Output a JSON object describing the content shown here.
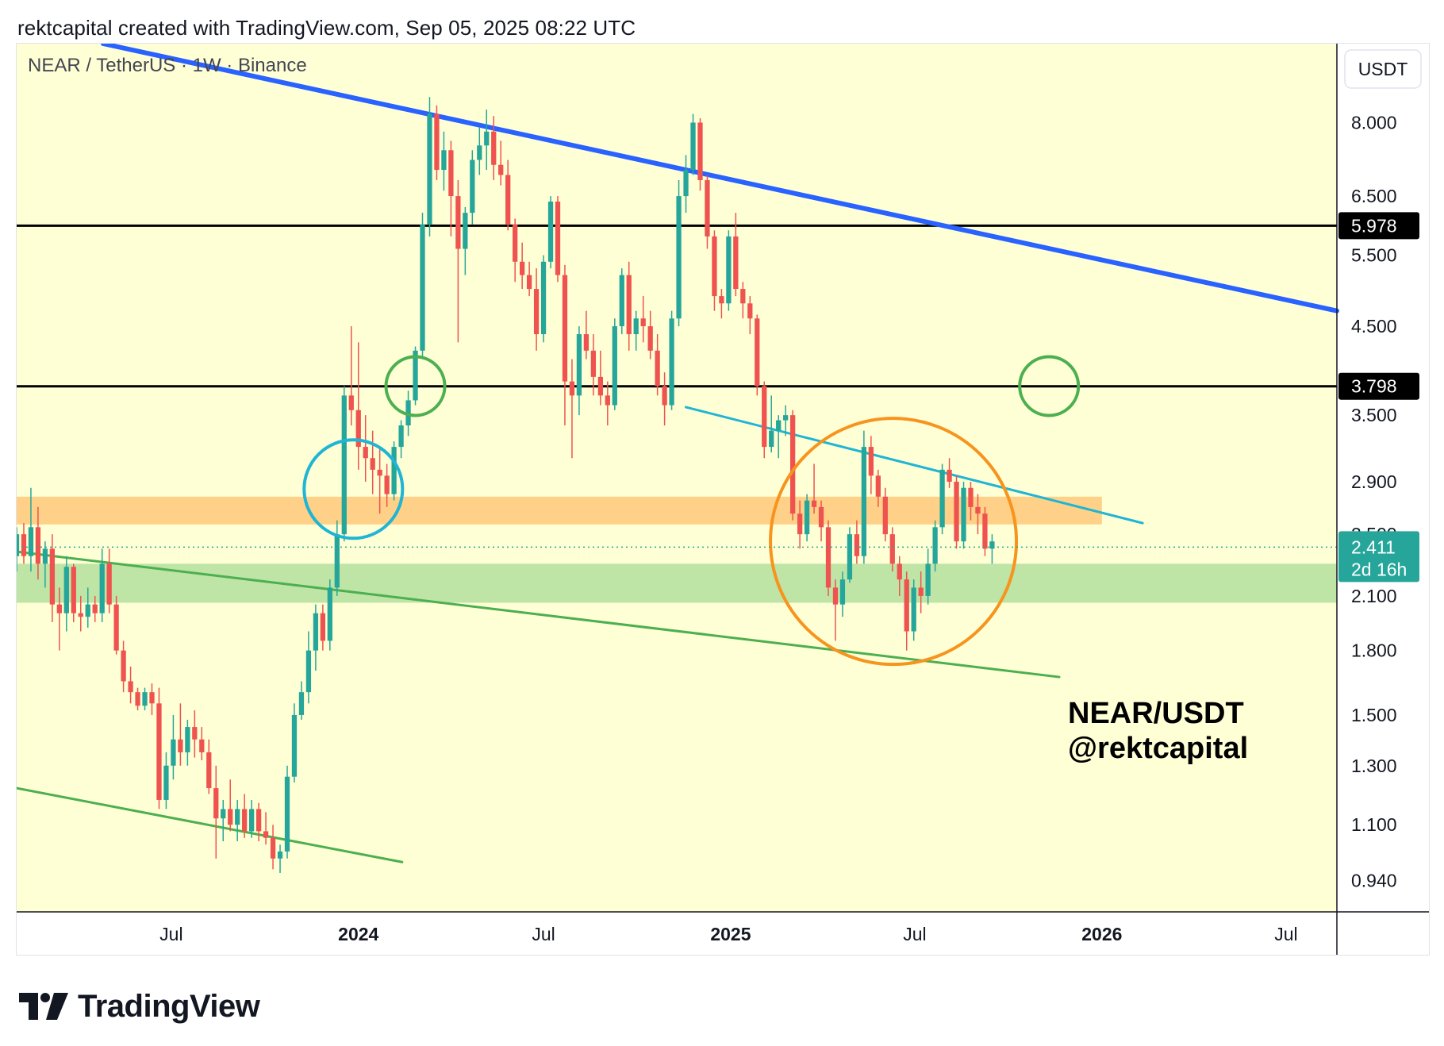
{
  "header": {
    "text": "rektcapital created with TradingView.com, Sep 05, 2025 08:22 UTC"
  },
  "footer": {
    "brand": "TradingView",
    "logo_icon": "tradingview-logo-icon"
  },
  "colors": {
    "chart_bg": "#ffffd6",
    "up": "#26a69a",
    "down": "#ef5350",
    "blue_trend": "#2962ff",
    "cyan_trend": "#1fb5d4",
    "green_trend": "#4caf50",
    "orange_zone": "#ffcc80",
    "green_zone": "#b7e1a1",
    "orange_circle": "#f7941d",
    "green_circle": "#4caf50",
    "cyan_circle": "#1fb5d4",
    "level_line": "#000000",
    "price_tag": "#26a69a"
  },
  "chart_data": {
    "type": "candlestick",
    "symbol_label": "NEAR / TetherUS · 1W · Binance",
    "currency_button": "USDT",
    "watermark_lines": [
      "NEAR/USDT",
      "@rektcapital"
    ],
    "y_scale": "log",
    "y_range": [
      0.86,
      10.0
    ],
    "x_range": [
      "2023-01-30",
      "2026-08-20"
    ],
    "y_ticks": [
      "8.000",
      "6.500",
      "5.500",
      "4.500",
      "3.500",
      "2.900",
      "2.500",
      "2.100",
      "1.800",
      "1.500",
      "1.300",
      "1.100",
      "0.940"
    ],
    "x_ticks": [
      {
        "label": "Jul",
        "date": "2023-07-01",
        "bold": false
      },
      {
        "label": "2024",
        "date": "2024-01-01",
        "bold": true
      },
      {
        "label": "Jul",
        "date": "2024-07-01",
        "bold": false
      },
      {
        "label": "2025",
        "date": "2025-01-01",
        "bold": true
      },
      {
        "label": "Jul",
        "date": "2025-07-01",
        "bold": false
      },
      {
        "label": "2026",
        "date": "2026-01-01",
        "bold": true
      },
      {
        "label": "Jul",
        "date": "2026-07-01",
        "bold": false
      }
    ],
    "current_price": {
      "value": "2.411",
      "countdown": "2d 16h",
      "price": 2.411
    },
    "horizontal_levels": [
      {
        "label": "5.978",
        "price": 5.978
      },
      {
        "label": "3.798",
        "price": 3.798
      }
    ],
    "zones": [
      {
        "name": "orange-zone",
        "from_date": "2023-01-30",
        "to_date": "2026-01-01",
        "low": 2.57,
        "high": 2.78
      },
      {
        "name": "green-zone",
        "from_date": "2023-01-30",
        "to_date": "2026-08-20",
        "low": 2.06,
        "high": 2.3
      }
    ],
    "trendlines": [
      {
        "name": "blue-descending-resistance",
        "from": [
          "2023-04-25",
          10.0
        ],
        "to": [
          "2026-08-20",
          4.7
        ]
      },
      {
        "name": "cyan-descending-trendline",
        "from": [
          "2024-11-18",
          3.58
        ],
        "to": [
          "2026-02-10",
          2.58
        ]
      },
      {
        "name": "green-upper-channel",
        "from": [
          "2023-01-30",
          2.38
        ],
        "to": [
          "2025-11-20",
          1.67
        ]
      },
      {
        "name": "green-lower-channel",
        "from": [
          "2023-01-30",
          1.22
        ],
        "to": [
          "2024-02-13",
          0.99
        ]
      }
    ],
    "circles": [
      {
        "name": "cyan-circle",
        "date": "2023-12-27",
        "price": 2.84
      },
      {
        "name": "green-circle-left",
        "date": "2024-02-26",
        "price": 3.8
      },
      {
        "name": "green-circle-right",
        "date": "2025-11-10",
        "price": 3.8
      },
      {
        "name": "orange-circle",
        "date": "2025-06-10",
        "price": 2.45
      }
    ],
    "candles_start": "2023-01-30",
    "candles_interval_days": 7,
    "candles": [
      [
        2.35,
        2.55,
        2.25,
        2.5
      ],
      [
        2.5,
        2.58,
        2.3,
        2.35
      ],
      [
        2.35,
        2.85,
        2.25,
        2.55
      ],
      [
        2.55,
        2.7,
        2.2,
        2.3
      ],
      [
        2.3,
        2.45,
        2.15,
        2.4
      ],
      [
        2.4,
        2.5,
        1.95,
        2.05
      ],
      [
        2.05,
        2.15,
        1.8,
        2.0
      ],
      [
        2.0,
        2.35,
        1.9,
        2.28
      ],
      [
        2.28,
        2.3,
        1.95,
        2.0
      ],
      [
        2.0,
        2.1,
        1.9,
        1.98
      ],
      [
        1.98,
        2.15,
        1.92,
        2.05
      ],
      [
        2.05,
        2.1,
        1.95,
        2.0
      ],
      [
        2.0,
        2.4,
        1.95,
        2.3
      ],
      [
        2.3,
        2.4,
        2.0,
        2.05
      ],
      [
        2.05,
        2.1,
        1.78,
        1.8
      ],
      [
        1.8,
        1.85,
        1.6,
        1.65
      ],
      [
        1.65,
        1.72,
        1.55,
        1.6
      ],
      [
        1.6,
        1.62,
        1.52,
        1.54
      ],
      [
        1.54,
        1.62,
        1.52,
        1.6
      ],
      [
        1.6,
        1.64,
        1.5,
        1.55
      ],
      [
        1.55,
        1.62,
        1.15,
        1.18
      ],
      [
        1.18,
        1.35,
        1.15,
        1.3
      ],
      [
        1.3,
        1.5,
        1.25,
        1.4
      ],
      [
        1.4,
        1.55,
        1.3,
        1.35
      ],
      [
        1.35,
        1.48,
        1.3,
        1.45
      ],
      [
        1.45,
        1.52,
        1.33,
        1.4
      ],
      [
        1.4,
        1.45,
        1.32,
        1.35
      ],
      [
        1.35,
        1.4,
        1.2,
        1.22
      ],
      [
        1.22,
        1.3,
        1.0,
        1.12
      ],
      [
        1.12,
        1.18,
        1.05,
        1.15
      ],
      [
        1.15,
        1.25,
        1.08,
        1.1
      ],
      [
        1.1,
        1.18,
        1.05,
        1.15
      ],
      [
        1.15,
        1.2,
        1.06,
        1.08
      ],
      [
        1.08,
        1.18,
        1.06,
        1.15
      ],
      [
        1.15,
        1.17,
        1.05,
        1.08
      ],
      [
        1.08,
        1.14,
        1.04,
        1.06
      ],
      [
        1.06,
        1.1,
        0.97,
        1.0
      ],
      [
        1.0,
        1.04,
        0.96,
        1.02
      ],
      [
        1.02,
        1.3,
        1.0,
        1.26
      ],
      [
        1.26,
        1.55,
        1.24,
        1.5
      ],
      [
        1.5,
        1.65,
        1.48,
        1.6
      ],
      [
        1.6,
        1.9,
        1.55,
        1.8
      ],
      [
        1.8,
        2.05,
        1.7,
        2.0
      ],
      [
        2.0,
        2.05,
        1.8,
        1.85
      ],
      [
        1.85,
        2.2,
        1.8,
        2.15
      ],
      [
        2.15,
        2.6,
        2.1,
        2.5
      ],
      [
        2.5,
        3.8,
        2.45,
        3.7
      ],
      [
        3.7,
        4.5,
        3.4,
        3.55
      ],
      [
        3.55,
        4.3,
        3.0,
        3.2
      ],
      [
        3.2,
        3.5,
        2.9,
        3.1
      ],
      [
        3.1,
        3.35,
        2.8,
        3.0
      ],
      [
        3.0,
        3.2,
        2.65,
        2.95
      ],
      [
        2.95,
        3.05,
        2.7,
        2.8
      ],
      [
        2.8,
        3.25,
        2.75,
        3.2
      ],
      [
        3.2,
        3.45,
        3.1,
        3.4
      ],
      [
        3.4,
        3.75,
        3.3,
        3.65
      ],
      [
        3.65,
        4.25,
        3.6,
        4.2
      ],
      [
        4.2,
        6.2,
        4.1,
        6.0
      ],
      [
        6.0,
        8.6,
        5.8,
        8.2
      ],
      [
        8.2,
        8.4,
        6.8,
        7.0
      ],
      [
        7.0,
        7.8,
        6.6,
        7.4
      ],
      [
        7.4,
        7.6,
        5.8,
        6.5
      ],
      [
        6.5,
        6.8,
        4.3,
        5.6
      ],
      [
        5.6,
        6.3,
        5.2,
        6.2
      ],
      [
        6.2,
        7.4,
        6.0,
        7.2
      ],
      [
        7.2,
        7.9,
        6.9,
        7.5
      ],
      [
        7.5,
        8.3,
        7.0,
        7.8
      ],
      [
        7.8,
        8.15,
        6.8,
        7.1
      ],
      [
        7.1,
        7.6,
        6.7,
        6.9
      ],
      [
        6.9,
        7.2,
        5.9,
        6.0
      ],
      [
        6.0,
        6.1,
        5.1,
        5.4
      ],
      [
        5.4,
        5.7,
        5.0,
        5.2
      ],
      [
        5.2,
        5.4,
        4.9,
        5.0
      ],
      [
        5.0,
        5.3,
        4.2,
        4.4
      ],
      [
        4.4,
        5.5,
        4.3,
        5.4
      ],
      [
        5.4,
        6.5,
        5.3,
        6.4
      ],
      [
        6.4,
        6.5,
        5.1,
        5.2
      ],
      [
        5.2,
        5.35,
        3.4,
        3.85
      ],
      [
        3.85,
        4.1,
        3.1,
        3.7
      ],
      [
        3.7,
        4.5,
        3.5,
        4.4
      ],
      [
        4.4,
        4.7,
        4.1,
        4.2
      ],
      [
        4.2,
        4.4,
        3.7,
        3.9
      ],
      [
        3.9,
        4.2,
        3.6,
        3.7
      ],
      [
        3.7,
        3.85,
        3.4,
        3.6
      ],
      [
        3.6,
        4.6,
        3.55,
        4.5
      ],
      [
        4.5,
        5.3,
        4.4,
        5.2
      ],
      [
        5.2,
        5.4,
        4.2,
        4.4
      ],
      [
        4.4,
        4.7,
        4.2,
        4.6
      ],
      [
        4.6,
        4.9,
        4.3,
        4.5
      ],
      [
        4.5,
        4.7,
        4.1,
        4.2
      ],
      [
        4.2,
        4.4,
        3.7,
        3.8
      ],
      [
        3.8,
        3.95,
        3.4,
        3.6
      ],
      [
        3.6,
        4.7,
        3.55,
        4.6
      ],
      [
        4.6,
        6.8,
        4.5,
        6.5
      ],
      [
        6.5,
        7.3,
        6.2,
        7.0
      ],
      [
        7.0,
        8.2,
        6.9,
        8.0
      ],
      [
        8.0,
        8.1,
        6.6,
        6.8
      ],
      [
        6.8,
        6.9,
        5.6,
        5.8
      ],
      [
        5.8,
        5.9,
        4.7,
        4.9
      ],
      [
        4.9,
        5.0,
        4.6,
        4.8
      ],
      [
        4.8,
        5.9,
        4.7,
        5.8
      ],
      [
        5.8,
        6.2,
        4.9,
        5.0
      ],
      [
        5.0,
        5.1,
        4.6,
        4.8
      ],
      [
        4.8,
        4.9,
        4.4,
        4.6
      ],
      [
        4.6,
        4.65,
        3.7,
        3.8
      ],
      [
        3.8,
        3.85,
        3.1,
        3.2
      ],
      [
        3.2,
        3.7,
        3.15,
        3.35
      ],
      [
        3.35,
        3.5,
        3.1,
        3.45
      ],
      [
        3.45,
        3.6,
        3.3,
        3.5
      ],
      [
        3.5,
        3.55,
        2.6,
        2.65
      ],
      [
        2.65,
        2.75,
        2.4,
        2.5
      ],
      [
        2.5,
        2.8,
        2.45,
        2.75
      ],
      [
        2.75,
        3.05,
        2.65,
        2.7
      ],
      [
        2.7,
        2.75,
        2.45,
        2.55
      ],
      [
        2.55,
        2.6,
        2.1,
        2.15
      ],
      [
        2.15,
        2.2,
        1.85,
        2.05
      ],
      [
        2.05,
        2.25,
        1.98,
        2.2
      ],
      [
        2.2,
        2.55,
        2.18,
        2.5
      ],
      [
        2.5,
        2.6,
        2.3,
        2.35
      ],
      [
        2.35,
        3.35,
        2.3,
        3.2
      ],
      [
        3.2,
        3.3,
        2.8,
        2.95
      ],
      [
        2.95,
        3.0,
        2.7,
        2.78
      ],
      [
        2.78,
        2.85,
        2.45,
        2.5
      ],
      [
        2.5,
        2.55,
        2.25,
        2.3
      ],
      [
        2.3,
        2.35,
        2.1,
        2.2
      ],
      [
        2.2,
        2.25,
        1.8,
        1.9
      ],
      [
        1.9,
        2.2,
        1.85,
        2.15
      ],
      [
        2.15,
        2.25,
        2.0,
        2.1
      ],
      [
        2.1,
        2.4,
        2.05,
        2.3
      ],
      [
        2.3,
        2.6,
        2.25,
        2.55
      ],
      [
        2.55,
        3.05,
        2.5,
        3.0
      ],
      [
        3.0,
        3.1,
        2.85,
        2.9
      ],
      [
        2.9,
        2.95,
        2.4,
        2.45
      ],
      [
        2.45,
        2.9,
        2.4,
        2.85
      ],
      [
        2.85,
        2.9,
        2.6,
        2.7
      ],
      [
        2.7,
        2.8,
        2.5,
        2.65
      ],
      [
        2.65,
        2.7,
        2.35,
        2.4
      ],
      [
        2.4,
        2.5,
        2.3,
        2.45
      ]
    ]
  }
}
